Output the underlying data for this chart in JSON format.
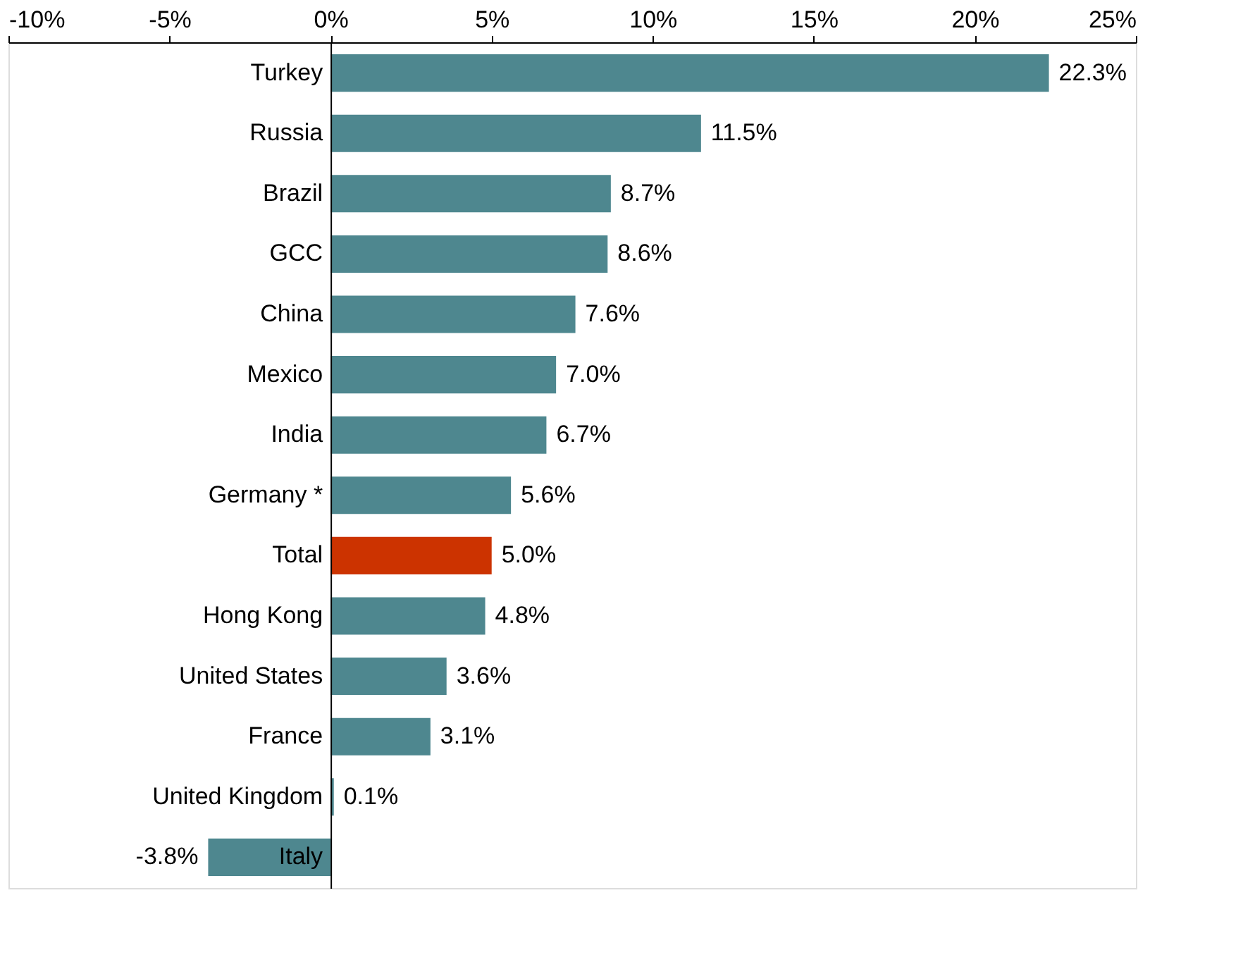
{
  "chart_data": {
    "type": "bar",
    "orientation": "horizontal",
    "categories": [
      "Turkey",
      "Russia",
      "Brazil",
      "GCC",
      "China",
      "Mexico",
      "India",
      "Germany *",
      "Total",
      "Hong Kong",
      "United States",
      "France",
      "United Kingdom",
      "Italy"
    ],
    "values": [
      22.3,
      11.5,
      8.7,
      8.6,
      7.6,
      7.0,
      6.7,
      5.6,
      5.0,
      4.8,
      3.6,
      3.1,
      0.1,
      -3.8
    ],
    "colors": [
      "#4e878f",
      "#4e878f",
      "#4e878f",
      "#4e878f",
      "#4e878f",
      "#4e878f",
      "#4e878f",
      "#4e878f",
      "#cc3300",
      "#4e878f",
      "#4e878f",
      "#4e878f",
      "#4e878f",
      "#4e878f"
    ],
    "value_labels": [
      "22.3%",
      "11.5%",
      "8.7%",
      "8.6%",
      "7.6%",
      "7.0%",
      "6.7%",
      "5.6%",
      "5.0%",
      "4.8%",
      "3.6%",
      "3.1%",
      "0.1%",
      "-3.8%"
    ],
    "xlim": [
      -10,
      25
    ],
    "xticks": [
      {
        "value": -10,
        "label": "-10%"
      },
      {
        "value": -5,
        "label": "-5%"
      },
      {
        "value": 0,
        "label": "0%"
      },
      {
        "value": 5,
        "label": "5%"
      },
      {
        "value": 10,
        "label": "10%"
      },
      {
        "value": 15,
        "label": "15%"
      },
      {
        "value": 20,
        "label": "20%"
      },
      {
        "value": 25,
        "label": "25%"
      }
    ],
    "grid": false
  }
}
